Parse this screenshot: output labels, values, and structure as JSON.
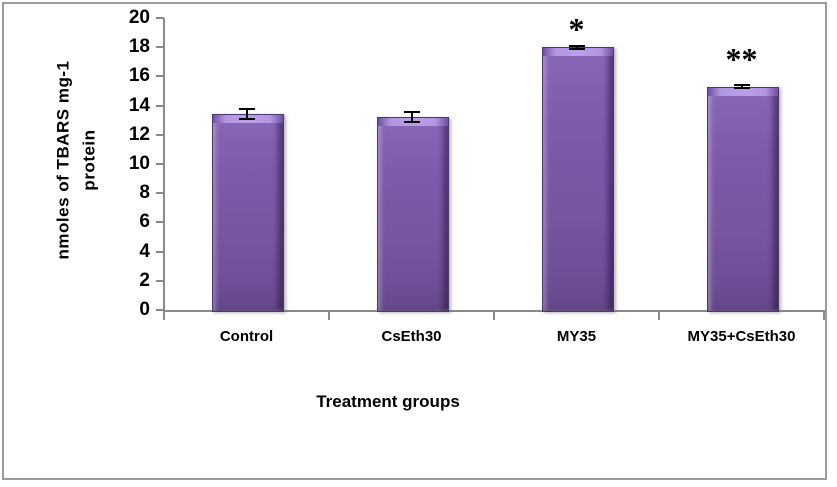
{
  "figure": {
    "background": "#ffffff",
    "frame_color": "#9b9b9b"
  },
  "chart_data": {
    "type": "bar",
    "title": "",
    "categories": [
      "Control",
      "CsEth30",
      "MY35",
      "MY35+CsEth30"
    ],
    "values": [
      13.4,
      13.2,
      18.0,
      15.3
    ],
    "errors": [
      0.35,
      0.35,
      0.1,
      0.1
    ],
    "annotations": [
      {
        "category_index": 2,
        "text": "*",
        "offset_y": 0
      },
      {
        "category_index": 3,
        "text": "**",
        "offset_y": -10
      }
    ],
    "xlabel": "Treatment groups",
    "ylabel": "nmoles of TBARS mg-1 protein",
    "ylabel_lines": [
      "nmoles of TBARS mg-1",
      "protein"
    ],
    "ylim": [
      0,
      20
    ],
    "yticks": [
      0,
      2,
      4,
      6,
      8,
      10,
      12,
      14,
      16,
      18,
      20
    ],
    "grid": false,
    "legend_position": "none",
    "bar_color": "#7b58a8",
    "bar_color_light": "#bb9fe8",
    "bar_color_dark": "#5e4287",
    "axis_color": "#8a8a8a",
    "error_bar_color": "#000000",
    "text_color": "#000000"
  }
}
